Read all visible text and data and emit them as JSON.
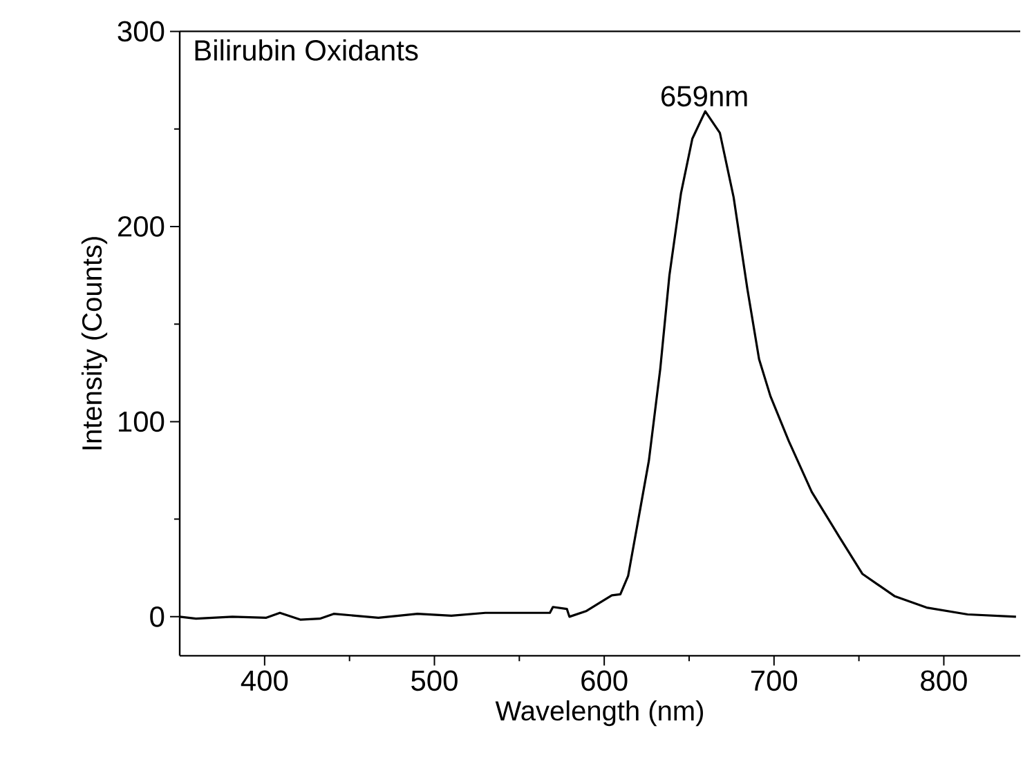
{
  "chart_data": {
    "type": "line",
    "xlabel": "Wavelength (nm)",
    "ylabel": "Intensity (Counts)",
    "annotations": [
      "Bilirubin Oxidants",
      {
        "text": "659nm",
        "x": 659,
        "y": 259
      }
    ],
    "xlim": [
      350,
      845
    ],
    "ylim": [
      -20,
      300
    ],
    "xticks": [
      400,
      500,
      600,
      700,
      800
    ],
    "yticks": [
      0,
      100,
      200,
      300
    ],
    "color": "#000000",
    "x": [
      350,
      359.6,
      381,
      401,
      409,
      421,
      432.5,
      440.7,
      467,
      490,
      510,
      530,
      556.5,
      568,
      569.8,
      578,
      579.5,
      589.6,
      598,
      604.5,
      609.5,
      614.1,
      619.5,
      626.3,
      633,
      638.4,
      645.2,
      651.9,
      659.5,
      668.1,
      676.2,
      684.3,
      691.2,
      697.9,
      708.7,
      722.2,
      738.4,
      752,
      770.9,
      789.8,
      814,
      842.5
    ],
    "values": [
      0,
      -1,
      0,
      -0.5,
      2,
      -1.5,
      -1,
      1.5,
      -0.5,
      1.5,
      0.5,
      2,
      2,
      2,
      5,
      4,
      0,
      3,
      7.5,
      11,
      11.5,
      21,
      47,
      80,
      127,
      175,
      217,
      245,
      259,
      248,
      215,
      168,
      132,
      113,
      90,
      64,
      41,
      22,
      10.6,
      4.7,
      1.2,
      0
    ]
  }
}
